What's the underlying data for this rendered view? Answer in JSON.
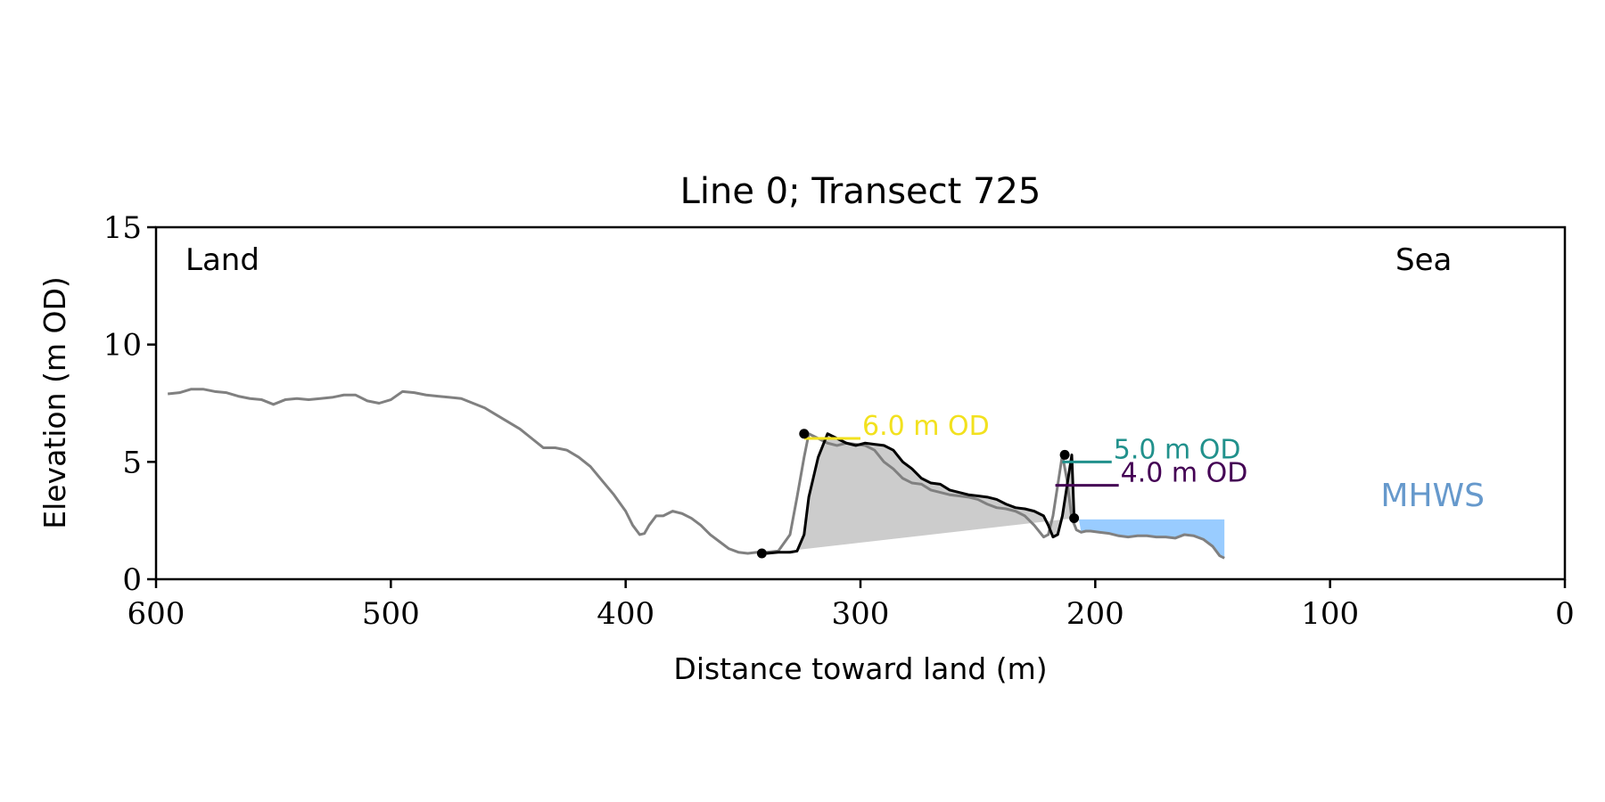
{
  "chart_data": {
    "type": "line",
    "title": "Line 0; Transect 725",
    "xlabel": "Distance toward land (m)",
    "ylabel": "Elevation (m OD)",
    "xlim": [
      600,
      0
    ],
    "ylim": [
      0,
      15
    ],
    "x_ticks": [
      "600",
      "500",
      "400",
      "300",
      "200",
      "100",
      "0"
    ],
    "y_ticks": [
      "0",
      "5",
      "10",
      "15"
    ],
    "grid": false,
    "corner_labels": {
      "left": "Land",
      "right": "Sea"
    },
    "profile": {
      "color": "#808080",
      "x": [
        595,
        590,
        585,
        580,
        575,
        570,
        565,
        560,
        555,
        550,
        545,
        540,
        535,
        530,
        525,
        520,
        515,
        510,
        505,
        500,
        495,
        490,
        485,
        480,
        475,
        470,
        465,
        460,
        455,
        450,
        445,
        440,
        435,
        430,
        425,
        420,
        415,
        410,
        405,
        400,
        397,
        394,
        392,
        390,
        387,
        384,
        380,
        376,
        372,
        368,
        364,
        360,
        356,
        352,
        348,
        344,
        340,
        335,
        330,
        327,
        324,
        322,
        318,
        314,
        310,
        306,
        302,
        298,
        294,
        290,
        286,
        282,
        278,
        274,
        270,
        266,
        262,
        258,
        254,
        250,
        246,
        242,
        238,
        234,
        230,
        226,
        222,
        220,
        218,
        216,
        214,
        212,
        210,
        208,
        206,
        204,
        202,
        198,
        194,
        190,
        186,
        182,
        178,
        174,
        170,
        166,
        162,
        158,
        154,
        150,
        147,
        145
      ],
      "y": [
        7.9,
        7.95,
        8.1,
        8.1,
        8.0,
        7.95,
        7.8,
        7.7,
        7.65,
        7.45,
        7.65,
        7.7,
        7.65,
        7.7,
        7.75,
        7.85,
        7.85,
        7.6,
        7.5,
        7.65,
        8.0,
        7.95,
        7.85,
        7.8,
        7.75,
        7.7,
        7.5,
        7.3,
        7.0,
        6.7,
        6.4,
        6.0,
        5.6,
        5.6,
        5.5,
        5.2,
        4.8,
        4.2,
        3.6,
        2.9,
        2.3,
        1.9,
        1.95,
        2.3,
        2.7,
        2.7,
        2.9,
        2.8,
        2.6,
        2.3,
        1.9,
        1.6,
        1.3,
        1.15,
        1.1,
        1.15,
        1.15,
        1.2,
        1.9,
        3.5,
        5.2,
        6.2,
        6.0,
        5.8,
        5.7,
        5.8,
        5.75,
        5.7,
        5.5,
        5.0,
        4.7,
        4.3,
        4.1,
        4.05,
        3.8,
        3.7,
        3.6,
        3.55,
        3.5,
        3.4,
        3.2,
        3.05,
        3.0,
        2.9,
        2.7,
        2.3,
        1.8,
        1.9,
        2.7,
        4.0,
        5.3,
        4.2,
        2.6,
        2.1,
        2.0,
        2.05,
        2.05,
        2.0,
        1.95,
        1.85,
        1.8,
        1.85,
        1.85,
        1.8,
        1.8,
        1.75,
        1.9,
        1.85,
        1.7,
        1.4,
        1.0,
        0.9
      ]
    },
    "dune_profile": {
      "color": "#000000",
      "x": [
        340,
        335,
        330,
        327,
        324,
        322,
        318,
        314,
        310,
        306,
        302,
        298,
        294,
        290,
        286,
        282,
        278,
        274,
        270,
        266,
        262,
        258,
        254,
        250,
        246,
        242,
        238,
        234,
        230,
        226,
        222,
        220,
        218,
        216,
        214,
        212,
        210
      ],
      "y": [
        1.1,
        1.15,
        1.15,
        1.2,
        1.9,
        3.5,
        5.2,
        6.2,
        6.0,
        5.8,
        5.7,
        5.8,
        5.75,
        5.7,
        5.5,
        5.0,
        4.7,
        4.3,
        4.1,
        4.05,
        3.8,
        3.7,
        3.6,
        3.55,
        3.5,
        3.4,
        3.2,
        3.05,
        3.0,
        2.9,
        2.7,
        2.3,
        1.8,
        1.9,
        2.7,
        4.0,
        5.3
      ]
    },
    "dune_fill_color": "#cccccc",
    "key_points": [
      {
        "x": 342,
        "y": 1.1
      },
      {
        "x": 324,
        "y": 6.2
      },
      {
        "x": 213,
        "y": 5.3
      },
      {
        "x": 209,
        "y": 2.6
      }
    ],
    "annotations": [
      {
        "text": "6.0 m OD",
        "level": 6.0,
        "x_start": 324,
        "x_end": 300,
        "color": "#f2e11e"
      },
      {
        "text": "5.0 m OD",
        "level": 5.0,
        "x_start": 214,
        "x_end": 193,
        "color": "#21918c"
      },
      {
        "text": "4.0 m OD",
        "level": 4.0,
        "x_start": 217,
        "x_end": 190,
        "color": "#440154"
      }
    ],
    "mhws": {
      "label": "MHWS",
      "level": 2.55,
      "x_start": 207,
      "x_end": 145,
      "fill_color": "#99ccff",
      "text_color": "#6699cc"
    }
  }
}
